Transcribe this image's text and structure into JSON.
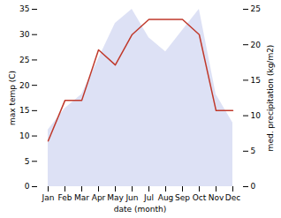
{
  "chart_data": {
    "type": "line",
    "xlabel": "date (month)",
    "ylabel": "max temp (C)",
    "y2label": "med. precipitation (kg/m2)",
    "categories": [
      "Jan",
      "Feb",
      "Mar",
      "Apr",
      "May",
      "Jun",
      "Jul",
      "Aug",
      "Sep",
      "Oct",
      "Nov",
      "Dec"
    ],
    "series": [
      {
        "type": "area",
        "axis": "y2",
        "color": "#b3bde8",
        "values": [
          8,
          11,
          13,
          18,
          23,
          25,
          21,
          19,
          22,
          25,
          13,
          9
        ]
      },
      {
        "type": "line",
        "color": "#c0392b",
        "values": [
          9,
          17,
          17,
          27,
          24,
          30,
          33,
          33,
          33,
          30,
          15,
          15
        ]
      }
    ],
    "ylim": [
      0,
      35
    ],
    "yticks": [
      0,
      5,
      10,
      15,
      20,
      25,
      30,
      35
    ],
    "y2lim": [
      0,
      25
    ],
    "y2ticks": [
      0,
      5,
      10,
      15,
      20,
      25
    ],
    "grid": false
  }
}
